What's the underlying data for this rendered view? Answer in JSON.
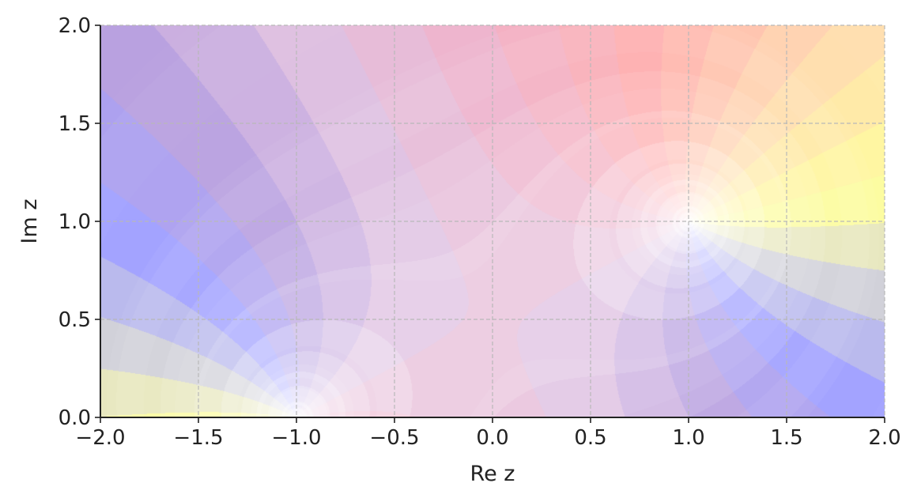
{
  "chart_data": {
    "type": "heatmap",
    "title": "",
    "xlabel": "Re z",
    "ylabel": "Im z",
    "xlim": [
      -2.0,
      2.0
    ],
    "ylim": [
      0.0,
      2.0
    ],
    "xticks": [
      "−2.0",
      "−1.5",
      "−1.0",
      "−0.5",
      "0.0",
      "0.5",
      "1.0",
      "1.5",
      "2.0"
    ],
    "yticks": [
      "0.0",
      "0.5",
      "1.0",
      "1.5",
      "2.0"
    ],
    "xtick_values": [
      -2,
      -1.5,
      -1,
      -0.5,
      0,
      0.5,
      1,
      1.5,
      2
    ],
    "ytick_values": [
      0,
      0.5,
      1,
      1.5,
      2
    ],
    "grid": true,
    "plot_kind": "domain coloring (phase sectors, modulus rings)",
    "zeros": [
      {
        "re": -1,
        "im": 0
      },
      {
        "re": 1,
        "im": 1
      }
    ],
    "phase_colors": [
      "#dcdccc",
      "#ffff99",
      "#ffd8b0",
      "#ffaaaa",
      "#f0b0c8",
      "#e0c0e0",
      "#b8a0e0",
      "#a0a0ff",
      "#c8c8e0"
    ]
  }
}
